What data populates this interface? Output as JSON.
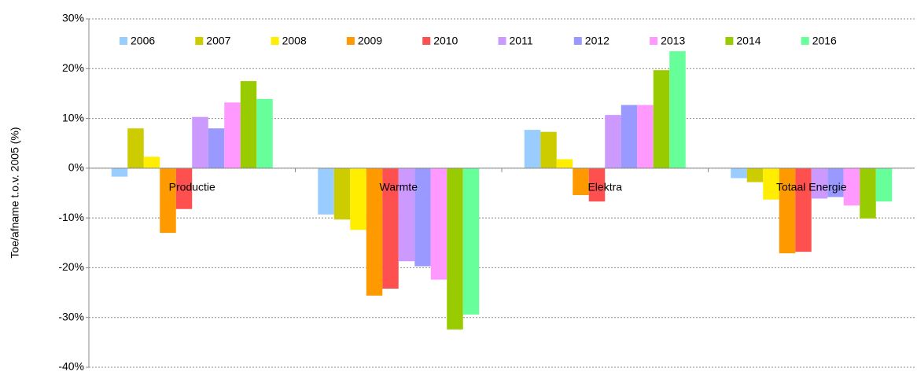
{
  "chart_data": {
    "type": "bar",
    "y_label": "Toe/afname t.o.v. 2005 (%)",
    "categories": [
      "Productie",
      "Warmte",
      "Elektra",
      "Totaal Energie"
    ],
    "series": [
      {
        "name": "2006",
        "color": "#99ccff",
        "values": [
          -1.7,
          -9.3,
          7.7,
          -2.0
        ]
      },
      {
        "name": "2007",
        "color": "#cccc00",
        "values": [
          8.0,
          -10.3,
          7.3,
          -2.8
        ]
      },
      {
        "name": "2008",
        "color": "#ffee00",
        "values": [
          2.3,
          -12.4,
          1.8,
          -6.3
        ]
      },
      {
        "name": "2009",
        "color": "#ff9900",
        "values": [
          -13.0,
          -25.6,
          -5.4,
          -17.1
        ]
      },
      {
        "name": "2010",
        "color": "#ff5050",
        "values": [
          -8.2,
          -24.2,
          -6.7,
          -16.8
        ]
      },
      {
        "name": "2011",
        "color": "#cc99ff",
        "values": [
          10.3,
          -18.7,
          10.7,
          -6.1
        ]
      },
      {
        "name": "2012",
        "color": "#9999ff",
        "values": [
          8.0,
          -19.7,
          12.7,
          -5.8
        ]
      },
      {
        "name": "2013",
        "color": "#ff99ff",
        "values": [
          13.2,
          -22.4,
          12.7,
          -7.5
        ]
      },
      {
        "name": "2014",
        "color": "#99cc00",
        "values": [
          17.5,
          -32.4,
          19.7,
          -10.1
        ]
      },
      {
        "name": "2016",
        "color": "#66ff99",
        "values": [
          13.9,
          -29.4,
          23.5,
          -6.7
        ]
      }
    ],
    "ylim": [
      -40,
      30
    ],
    "yticks": [
      {
        "value": -40,
        "label": "-40%"
      },
      {
        "value": -30,
        "label": "-30%"
      },
      {
        "value": -20,
        "label": "-20%"
      },
      {
        "value": -10,
        "label": "-10%"
      },
      {
        "value": 0,
        "label": "0%"
      },
      {
        "value": 10,
        "label": "10%"
      },
      {
        "value": 20,
        "label": "20%"
      },
      {
        "value": 30,
        "label": "30%"
      }
    ],
    "grid": true,
    "legend": "top"
  }
}
